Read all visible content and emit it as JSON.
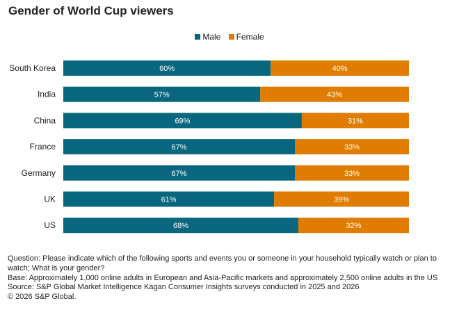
{
  "chart_data": {
    "type": "bar",
    "orientation": "horizontal",
    "stacked": true,
    "title": "Gender of World Cup viewers",
    "categories": [
      "South Korea",
      "India",
      "China",
      "France",
      "Germany",
      "UK",
      "US"
    ],
    "series": [
      {
        "name": "Male",
        "color": "#08677e",
        "values": [
          60,
          57,
          69,
          67,
          67,
          61,
          68
        ],
        "labels": [
          "60%",
          "57%",
          "69%",
          "67%",
          "67%",
          "61%",
          "68%"
        ]
      },
      {
        "name": "Female",
        "color": "#e07c00",
        "values": [
          40,
          43,
          31,
          33,
          33,
          39,
          32
        ],
        "labels": [
          "40%",
          "43%",
          "31%",
          "33%",
          "33%",
          "39%",
          "32%"
        ]
      }
    ],
    "xlim": [
      0,
      100
    ],
    "grid": false,
    "legend_position": "top-center"
  },
  "footnotes": [
    "Question: Please indicate which of the following sports and events you or someone in your household typically watch or plan to watch; What is your gender?",
    "Base: Approximately 1,000 online adults in European and Asia-Pacific markets and approximately 2,500 online adults in the US",
    "Source: S&P Global Market Intelligence Kagan Consumer Insights surveys conducted in 2025 and 2026",
    "© 2026 S&P Global."
  ]
}
